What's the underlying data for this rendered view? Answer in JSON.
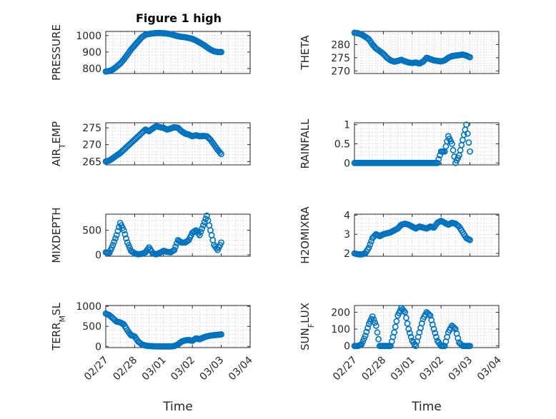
{
  "figure": {
    "title": "Figure 1 high"
  },
  "chart_data": [
    {
      "type": "scatter",
      "panel": "pressure",
      "title": "Figure 1 high",
      "ylabel": "PRESSURE",
      "xlabel": "",
      "xlim": [
        "2019-02-27",
        "2019-03-04"
      ],
      "ylim": [
        770,
        1025
      ],
      "yticks": [
        800,
        900,
        1000
      ],
      "ytick_labels": [
        "800",
        "900",
        "1000"
      ],
      "grid": true,
      "minor_grid": true,
      "series": [
        {
          "x": [
            "2019-02-27 00:00",
            "2019-02-27 03:00",
            "2019-02-27 06:00",
            "2019-02-27 09:00",
            "2019-02-27 12:00",
            "2019-02-27 15:00",
            "2019-02-27 18:00",
            "2019-02-27 21:00",
            "2019-02-28 00:00",
            "2019-02-28 03:00",
            "2019-02-28 06:00",
            "2019-02-28 09:00",
            "2019-02-28 12:00",
            "2019-02-28 15:00",
            "2019-02-28 18:00",
            "2019-02-28 21:00",
            "2019-03-01 00:00",
            "2019-03-01 03:00",
            "2019-03-01 06:00",
            "2019-03-01 09:00",
            "2019-03-01 12:00",
            "2019-03-01 15:00",
            "2019-03-01 18:00",
            "2019-03-01 21:00",
            "2019-03-02 00:00",
            "2019-03-02 03:00",
            "2019-03-02 06:00",
            "2019-03-02 09:00",
            "2019-03-02 12:00",
            "2019-03-02 15:00",
            "2019-03-02 18:00",
            "2019-03-02 21:00",
            "2019-03-03 00:00"
          ],
          "y": [
            782,
            785,
            795,
            812,
            830,
            855,
            885,
            915,
            940,
            965,
            990,
            1005,
            1010,
            1013,
            1015,
            1015,
            1014,
            1012,
            1008,
            1002,
            996,
            992,
            990,
            985,
            980,
            970,
            958,
            945,
            930,
            915,
            905,
            900,
            900
          ]
        }
      ]
    },
    {
      "type": "scatter",
      "panel": "theta",
      "title": "",
      "ylabel": "THETA",
      "xlabel": "",
      "xlim": [
        "2019-02-27",
        "2019-03-04"
      ],
      "ylim": [
        269,
        285
      ],
      "yticks": [
        270,
        275,
        280
      ],
      "ytick_labels": [
        "270",
        "275",
        "280"
      ],
      "grid": true,
      "minor_grid": true,
      "series": [
        {
          "x": [
            "2019-02-27 00:00",
            "2019-02-27 03:00",
            "2019-02-27 06:00",
            "2019-02-27 09:00",
            "2019-02-27 12:00",
            "2019-02-27 15:00",
            "2019-02-27 18:00",
            "2019-02-27 21:00",
            "2019-02-28 00:00",
            "2019-02-28 03:00",
            "2019-02-28 06:00",
            "2019-02-28 09:00",
            "2019-02-28 12:00",
            "2019-02-28 15:00",
            "2019-02-28 18:00",
            "2019-02-28 21:00",
            "2019-03-01 00:00",
            "2019-03-01 03:00",
            "2019-03-01 06:00",
            "2019-03-01 09:00",
            "2019-03-01 12:00",
            "2019-03-01 15:00",
            "2019-03-01 18:00",
            "2019-03-01 21:00",
            "2019-03-02 00:00",
            "2019-03-02 03:00",
            "2019-03-02 06:00",
            "2019-03-02 09:00",
            "2019-03-02 12:00",
            "2019-03-02 15:00",
            "2019-03-02 18:00",
            "2019-03-02 21:00",
            "2019-03-03 00:00"
          ],
          "y": [
            284.5,
            284.3,
            283.8,
            283,
            282,
            280,
            278.5,
            277.5,
            276.5,
            275,
            274,
            273.5,
            273.8,
            274.2,
            273.6,
            273.2,
            273,
            273.2,
            272.8,
            273.5,
            275,
            274.5,
            274,
            273.8,
            273.6,
            274,
            275,
            275.6,
            275.8,
            276,
            276.2,
            275.8,
            275.2
          ]
        }
      ]
    },
    {
      "type": "scatter",
      "panel": "air_temp",
      "title": "",
      "ylabel_main": "AIR",
      "ylabel_sub": "T",
      "ylabel_rest": "EMP",
      "xlabel": "",
      "xlim": [
        "2019-02-27",
        "2019-03-04"
      ],
      "ylim": [
        264,
        276.5
      ],
      "yticks": [
        265,
        270,
        275
      ],
      "ytick_labels": [
        "265",
        "270",
        "275"
      ],
      "grid": true,
      "minor_grid": true,
      "series": [
        {
          "x": [
            "2019-02-27 00:00",
            "2019-02-27 03:00",
            "2019-02-27 06:00",
            "2019-02-27 09:00",
            "2019-02-27 12:00",
            "2019-02-27 15:00",
            "2019-02-27 18:00",
            "2019-02-27 21:00",
            "2019-02-28 00:00",
            "2019-02-28 03:00",
            "2019-02-28 06:00",
            "2019-02-28 09:00",
            "2019-02-28 12:00",
            "2019-02-28 15:00",
            "2019-02-28 18:00",
            "2019-02-28 21:00",
            "2019-03-01 00:00",
            "2019-03-01 03:00",
            "2019-03-01 06:00",
            "2019-03-01 09:00",
            "2019-03-01 12:00",
            "2019-03-01 15:00",
            "2019-03-01 18:00",
            "2019-03-01 21:00",
            "2019-03-02 00:00",
            "2019-03-02 03:00",
            "2019-03-02 06:00",
            "2019-03-02 09:00",
            "2019-03-02 12:00",
            "2019-03-02 15:00",
            "2019-03-02 18:00",
            "2019-03-02 21:00",
            "2019-03-03 00:00"
          ],
          "y": [
            265,
            265.3,
            266,
            266.8,
            267.5,
            268.5,
            269.5,
            270.5,
            271.5,
            272.5,
            273.5,
            274.5,
            274,
            274.8,
            275.5,
            275.2,
            275,
            274.5,
            274.8,
            275.2,
            275,
            274,
            273.3,
            273,
            272.5,
            272.8,
            272.5,
            272.6,
            272.5,
            271.5,
            270,
            268.5,
            267.2
          ]
        }
      ]
    },
    {
      "type": "scatter",
      "panel": "rainfall",
      "title": "",
      "ylabel": "RAINFALL",
      "xlabel": "",
      "xlim": [
        "2019-02-27",
        "2019-03-04"
      ],
      "ylim": [
        -0.05,
        1.05
      ],
      "yticks": [
        0,
        0.5,
        1
      ],
      "ytick_labels": [
        "0",
        "0.5",
        "1"
      ],
      "grid": true,
      "minor_grid": true,
      "series": [
        {
          "x": [
            "2019-02-27 00:00",
            "2019-02-27 03:00",
            "2019-02-27 06:00",
            "2019-02-27 09:00",
            "2019-02-27 12:00",
            "2019-02-27 15:00",
            "2019-02-27 18:00",
            "2019-02-27 21:00",
            "2019-02-28 00:00",
            "2019-02-28 03:00",
            "2019-02-28 06:00",
            "2019-02-28 09:00",
            "2019-02-28 12:00",
            "2019-02-28 15:00",
            "2019-02-28 18:00",
            "2019-02-28 21:00",
            "2019-03-01 00:00",
            "2019-03-01 03:00",
            "2019-03-01 06:00",
            "2019-03-01 09:00",
            "2019-03-01 12:00",
            "2019-03-01 15:00",
            "2019-03-01 18:00",
            "2019-03-01 21:00",
            "2019-03-02 00:00",
            "2019-03-02 03:00",
            "2019-03-02 06:00",
            "2019-03-02 09:00",
            "2019-03-02 12:00",
            "2019-03-02 15:00",
            "2019-03-02 18:00",
            "2019-03-02 21:00",
            "2019-03-03 00:00"
          ],
          "y": [
            0,
            0,
            0,
            0,
            0,
            0,
            0,
            0,
            0,
            0,
            0,
            0,
            0,
            0,
            0,
            0,
            0,
            0,
            0,
            0,
            0,
            0,
            0,
            0,
            0.3,
            0.3,
            0.7,
            0.5,
            0,
            0.2,
            0.6,
            1,
            0.3
          ]
        }
      ]
    },
    {
      "type": "scatter",
      "panel": "mixdepth",
      "title": "",
      "ylabel": "MIXDEPTH",
      "xlabel": "",
      "xlim": [
        "2019-02-27",
        "2019-03-04"
      ],
      "ylim": [
        -30,
        830
      ],
      "yticks": [
        0,
        500
      ],
      "ytick_labels": [
        "0",
        "500"
      ],
      "grid": true,
      "minor_grid": true,
      "series": [
        {
          "x": [
            "2019-02-27 00:00",
            "2019-02-27 03:00",
            "2019-02-27 06:00",
            "2019-02-27 09:00",
            "2019-02-27 12:00",
            "2019-02-27 15:00",
            "2019-02-27 18:00",
            "2019-02-27 21:00",
            "2019-02-28 00:00",
            "2019-02-28 03:00",
            "2019-02-28 06:00",
            "2019-02-28 09:00",
            "2019-02-28 12:00",
            "2019-02-28 15:00",
            "2019-02-28 18:00",
            "2019-02-28 21:00",
            "2019-03-01 00:00",
            "2019-03-01 03:00",
            "2019-03-01 06:00",
            "2019-03-01 09:00",
            "2019-03-01 12:00",
            "2019-03-01 15:00",
            "2019-03-01 18:00",
            "2019-03-01 21:00",
            "2019-03-02 00:00",
            "2019-03-02 03:00",
            "2019-03-02 06:00",
            "2019-03-02 09:00",
            "2019-03-02 12:00",
            "2019-03-02 15:00",
            "2019-03-02 18:00",
            "2019-03-02 21:00",
            "2019-03-03 00:00"
          ],
          "y": [
            50,
            40,
            200,
            400,
            650,
            500,
            250,
            80,
            30,
            10,
            20,
            50,
            150,
            30,
            10,
            40,
            80,
            60,
            50,
            100,
            300,
            250,
            250,
            300,
            450,
            500,
            400,
            600,
            800,
            500,
            200,
            100,
            250
          ]
        }
      ]
    },
    {
      "type": "scatter",
      "panel": "h2omixra",
      "title": "",
      "ylabel": "H2OMIXRA",
      "xlabel": "",
      "xlim": [
        "2019-02-27",
        "2019-03-04"
      ],
      "ylim": [
        1.85,
        4.05
      ],
      "yticks": [
        2,
        3,
        4
      ],
      "ytick_labels": [
        "2",
        "3",
        "4"
      ],
      "grid": true,
      "minor_grid": true,
      "series": [
        {
          "x": [
            "2019-02-27 00:00",
            "2019-02-27 03:00",
            "2019-02-27 06:00",
            "2019-02-27 09:00",
            "2019-02-27 12:00",
            "2019-02-27 15:00",
            "2019-02-27 18:00",
            "2019-02-27 21:00",
            "2019-02-28 00:00",
            "2019-02-28 03:00",
            "2019-02-28 06:00",
            "2019-02-28 09:00",
            "2019-02-28 12:00",
            "2019-02-28 15:00",
            "2019-02-28 18:00",
            "2019-02-28 21:00",
            "2019-03-01 00:00",
            "2019-03-01 03:00",
            "2019-03-01 06:00",
            "2019-03-01 09:00",
            "2019-03-01 12:00",
            "2019-03-01 15:00",
            "2019-03-01 18:00",
            "2019-03-01 21:00",
            "2019-03-02 00:00",
            "2019-03-02 03:00",
            "2019-03-02 06:00",
            "2019-03-02 09:00",
            "2019-03-02 12:00",
            "2019-03-02 15:00",
            "2019-03-02 18:00",
            "2019-03-02 21:00",
            "2019-03-03 00:00"
          ],
          "y": [
            2,
            1.95,
            1.95,
            2,
            2.3,
            2.8,
            3,
            2.9,
            3,
            3.05,
            3.1,
            3.2,
            3.3,
            3.5,
            3.55,
            3.5,
            3.4,
            3.3,
            3.4,
            3.35,
            3.3,
            3.4,
            3.35,
            3.6,
            3.7,
            3.6,
            3.5,
            3.6,
            3.55,
            3.4,
            3.1,
            2.8,
            2.7
          ]
        }
      ]
    },
    {
      "type": "scatter",
      "panel": "terr_msl",
      "title": "",
      "ylabel_main": "TERR",
      "ylabel_sub": "M",
      "ylabel_rest": "SL",
      "xlabel": "Time",
      "xlim": [
        "2019-02-27",
        "2019-03-04"
      ],
      "ylim": [
        -30,
        1020
      ],
      "yticks": [
        0,
        500,
        1000
      ],
      "ytick_labels": [
        "0",
        "500",
        "1000"
      ],
      "xticks": [
        "2019-02-27",
        "2019-02-28",
        "2019-03-01",
        "2019-03-02",
        "2019-03-03",
        "2019-03-04"
      ],
      "xtick_labels": [
        "02/27",
        "02/28",
        "03/01",
        "03/02",
        "03/03",
        "03/04"
      ],
      "grid": true,
      "minor_grid": true,
      "series": [
        {
          "x": [
            "2019-02-27 00:00",
            "2019-02-27 03:00",
            "2019-02-27 06:00",
            "2019-02-27 09:00",
            "2019-02-27 12:00",
            "2019-02-27 15:00",
            "2019-02-27 18:00",
            "2019-02-27 21:00",
            "2019-02-28 00:00",
            "2019-02-28 03:00",
            "2019-02-28 06:00",
            "2019-02-28 09:00",
            "2019-02-28 12:00",
            "2019-02-28 15:00",
            "2019-02-28 18:00",
            "2019-02-28 21:00",
            "2019-03-01 00:00",
            "2019-03-01 03:00",
            "2019-03-01 06:00",
            "2019-03-01 09:00",
            "2019-03-01 12:00",
            "2019-03-01 15:00",
            "2019-03-01 18:00",
            "2019-03-01 21:00",
            "2019-03-02 00:00",
            "2019-03-02 03:00",
            "2019-03-02 06:00",
            "2019-03-02 09:00",
            "2019-03-02 12:00",
            "2019-03-02 15:00",
            "2019-03-02 18:00",
            "2019-03-02 21:00",
            "2019-03-03 00:00"
          ],
          "y": [
            820,
            780,
            700,
            620,
            600,
            550,
            400,
            280,
            250,
            120,
            50,
            20,
            10,
            5,
            0,
            0,
            0,
            0,
            0,
            10,
            50,
            120,
            150,
            160,
            140,
            200,
            180,
            220,
            250,
            270,
            280,
            290,
            300
          ]
        }
      ]
    },
    {
      "type": "scatter",
      "panel": "sun_flux",
      "title": "",
      "ylabel_main": "SUN",
      "ylabel_sub": "F",
      "ylabel_rest": "LUX",
      "xlabel": "Time",
      "xlim": [
        "2019-02-27",
        "2019-03-04"
      ],
      "ylim": [
        -10,
        240
      ],
      "yticks": [
        0,
        100,
        200
      ],
      "ytick_labels": [
        "0",
        "100",
        "200"
      ],
      "xticks": [
        "2019-02-27",
        "2019-02-28",
        "2019-03-01",
        "2019-03-02",
        "2019-03-03",
        "2019-03-04"
      ],
      "xtick_labels": [
        "02/27",
        "02/28",
        "03/01",
        "03/02",
        "03/03",
        "03/04"
      ],
      "grid": true,
      "minor_grid": true,
      "series": [
        {
          "x": [
            "2019-02-27 00:00",
            "2019-02-27 03:00",
            "2019-02-27 06:00",
            "2019-02-27 09:00",
            "2019-02-27 12:00",
            "2019-02-27 15:00",
            "2019-02-27 18:00",
            "2019-02-27 21:00",
            "2019-02-28 00:00",
            "2019-02-28 03:00",
            "2019-02-28 06:00",
            "2019-02-28 09:00",
            "2019-02-28 12:00",
            "2019-02-28 15:00",
            "2019-02-28 18:00",
            "2019-02-28 21:00",
            "2019-03-01 00:00",
            "2019-03-01 03:00",
            "2019-03-01 06:00",
            "2019-03-01 09:00",
            "2019-03-01 12:00",
            "2019-03-01 15:00",
            "2019-03-01 18:00",
            "2019-03-01 21:00",
            "2019-03-02 00:00",
            "2019-03-02 03:00",
            "2019-03-02 06:00",
            "2019-03-02 09:00",
            "2019-03-02 12:00",
            "2019-03-02 15:00",
            "2019-03-02 18:00",
            "2019-03-02 21:00",
            "2019-03-03 00:00"
          ],
          "y": [
            0,
            0,
            10,
            60,
            130,
            175,
            120,
            0,
            0,
            0,
            0,
            80,
            180,
            225,
            200,
            100,
            30,
            0,
            80,
            160,
            200,
            180,
            100,
            30,
            0,
            0,
            80,
            120,
            100,
            20,
            0,
            0,
            0
          ]
        }
      ]
    }
  ]
}
